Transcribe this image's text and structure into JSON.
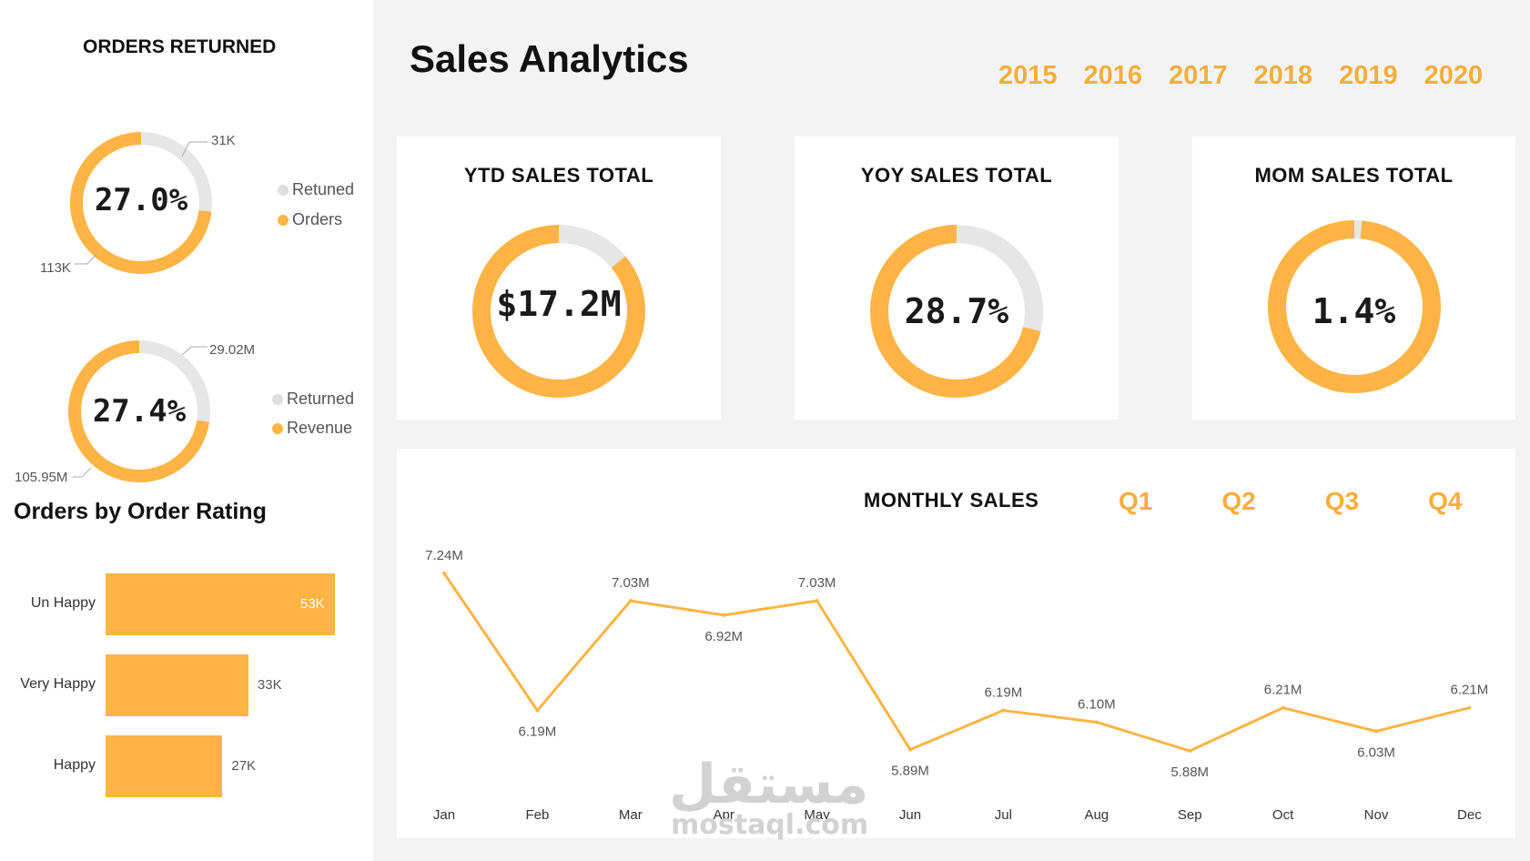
{
  "page_title": "Sales Analytics",
  "years": [
    "2015",
    "2016",
    "2017",
    "2018",
    "2019",
    "2020"
  ],
  "colors": {
    "accent": "#fdb444",
    "track": "#e6e6e6",
    "year_text": "#f7ad3d"
  },
  "left": {
    "orders_returned_title": "ORDERS RETURNED",
    "donut1": {
      "center": "27.0%",
      "label_top": "31K",
      "label_bottom": "113K",
      "legend": [
        "Retuned",
        "Orders"
      ],
      "fraction": 0.27
    },
    "donut2": {
      "center": "27.4%",
      "label_top": "29.02M",
      "label_bottom": "105.95M",
      "legend": [
        "Returned",
        "Revenue"
      ],
      "fraction": 0.274
    },
    "rating_title": "Orders by Order Rating"
  },
  "kpis": {
    "ytd": {
      "title": "YTD SALES TOTAL",
      "value": "$17.2M",
      "fraction": 0.86
    },
    "yoy": {
      "title": "YOY SALES TOTAL",
      "value": "28.7%",
      "fraction": 0.713
    },
    "mom": {
      "title": "MOM SALES TOTAL",
      "value": "1.4%",
      "fraction": 0.986
    }
  },
  "monthly": {
    "title": "MONTHLY SALES",
    "quarters": [
      "Q1",
      "Q2",
      "Q3",
      "Q4"
    ]
  },
  "watermark": {
    "arabic": "مستقل",
    "latin": "mostaql.com"
  },
  "chart_data": [
    {
      "type": "bar",
      "title": "Orders by Order Rating",
      "orientation": "horizontal",
      "categories": [
        "Un Happy",
        "Very Happy",
        "Happy"
      ],
      "values": [
        53,
        33,
        27
      ],
      "value_labels": [
        "53K",
        "33K",
        "27K"
      ],
      "unit": "K"
    },
    {
      "type": "line",
      "title": "MONTHLY SALES",
      "categories": [
        "Jan",
        "Feb",
        "Mar",
        "Apr",
        "May",
        "Jun",
        "Jul",
        "Aug",
        "Sep",
        "Oct",
        "Nov",
        "Dec"
      ],
      "values": [
        7.24,
        6.19,
        7.03,
        6.92,
        7.03,
        5.89,
        6.19,
        6.1,
        5.88,
        6.21,
        6.03,
        6.21
      ],
      "value_labels": [
        "7.24M",
        "6.19M",
        "7.03M",
        "6.92M",
        "7.03M",
        "5.89M",
        "6.19M",
        "6.10M",
        "5.88M",
        "6.21M",
        "6.03M",
        "6.21M"
      ],
      "unit": "M",
      "grid": false
    }
  ]
}
